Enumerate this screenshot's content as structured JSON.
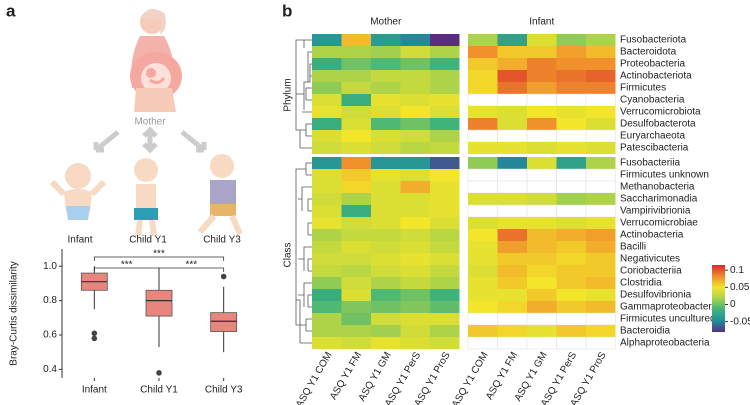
{
  "chart_data": [
    {
      "type": "boxplot",
      "panel_label": "a",
      "illustration_labels": [
        "Mother",
        "Infant",
        "Child Y1",
        "Child Y3"
      ],
      "ylabel": "Bray-Curtis dissimilarity",
      "categories": [
        "Infant",
        "Child Y1",
        "Child Y3"
      ],
      "boxes": [
        {
          "whisker_low": 0.75,
          "q1": 0.86,
          "median": 0.91,
          "q3": 0.96,
          "whisker_high": 1.0,
          "outliers": [
            0.61,
            0.58
          ]
        },
        {
          "whisker_low": 0.53,
          "q1": 0.71,
          "median": 0.8,
          "q3": 0.86,
          "whisker_high": 0.97,
          "outliers": [
            0.38
          ]
        },
        {
          "whisker_low": 0.5,
          "q1": 0.62,
          "median": 0.68,
          "q3": 0.73,
          "whisker_high": 0.88,
          "outliers": [
            0.94
          ]
        }
      ],
      "color": "#e8857c",
      "annotations": [
        "***",
        "***",
        "***"
      ],
      "ylim": [
        0.35,
        1.1
      ],
      "yticks": [
        {
          "value": 0.4,
          "label": "0.4"
        },
        {
          "value": 0.6,
          "label": "0.6"
        },
        {
          "value": 0.8,
          "label": "0.8"
        },
        {
          "value": 1.0,
          "label": "1.0"
        }
      ]
    },
    {
      "type": "heatmap",
      "panel_label": "b",
      "columns": [
        "ASQ Y1 COM",
        "ASQ Y1 FM",
        "ASQ Y1 GM",
        "ASQ Y1 PerS",
        "ASQ Y1 ProS"
      ],
      "row_groups": [
        {
          "name": "Phylum",
          "rows": [
            "Fusobacteriota",
            "Bacteroidota",
            "Proteobacteria",
            "Actinobacteriota",
            "Firmicutes",
            "Cyanobacteria",
            "Verrucomicrobiota",
            "Desulfobacterota",
            "Euryarchaeota",
            "Patescibacteria"
          ]
        },
        {
          "name": "Class",
          "rows": [
            "Fusobacteriia",
            "Firmicutes unknown",
            "Methanobacteria",
            "Saccharimonadia",
            "Vampirivibrionia",
            "Verrucomicrobiae",
            "Actinobacteria",
            "Bacilli",
            "Negativicutes",
            "Coriobacteriia",
            "Clostridia",
            "Desulfovibrionia",
            "Gammaproteobacteria",
            "Firmicutes uncultured",
            "Bacteroidia",
            "Alphaproteobacteria"
          ]
        }
      ],
      "panels": [
        {
          "title": "Mother",
          "values": [
            [
              [
                -0.04,
                0.065,
                -0.035,
                -0.05,
                -0.08
              ],
              [
                0.02,
                0.02,
                0.015,
                0.035,
                0.02
              ],
              [
                -0.02,
                0,
                -0.01,
                0,
                -0.015
              ],
              [
                0.02,
                0.02,
                0.03,
                0.03,
                0.02
              ],
              [
                0.01,
                0.03,
                0.02,
                0.03,
                0.02
              ],
              [
                0.04,
                -0.02,
                0.045,
                0.04,
                0.045
              ],
              [
                0.045,
                0.035,
                0.04,
                0.05,
                0.04
              ],
              [
                -0.02,
                0.04,
                -0.01,
                0,
                -0.015
              ],
              [
                0.04,
                0.05,
                0.04,
                0.035,
                0.02
              ],
              [
                0.035,
                0.04,
                0.035,
                0.025,
                0.03
              ]
            ],
            [
              [
                -0.04,
                0.08,
                -0.04,
                -0.04,
                -0.065
              ],
              [
                0.04,
                0.06,
                0.045,
                0.04,
                0.05
              ],
              [
                0.04,
                0.055,
                0.04,
                0.07,
                0.045
              ],
              [
                0.035,
                0.02,
                0.04,
                0.04,
                0.045
              ],
              [
                0.04,
                -0.02,
                0.04,
                0.04,
                0.045
              ],
              [
                0.045,
                0.035,
                0.04,
                0.05,
                0.04
              ],
              [
                0.02,
                0.03,
                0.03,
                0.035,
                0.025
              ],
              [
                0.03,
                0.04,
                0.035,
                0.04,
                0.03
              ],
              [
                0.035,
                0.035,
                0.04,
                0.045,
                0.04
              ],
              [
                0.03,
                0.025,
                0.035,
                0.04,
                0.03
              ],
              [
                0.01,
                0.035,
                0.02,
                0.03,
                0.02
              ],
              [
                -0.02,
                0.04,
                -0.01,
                0,
                -0.015
              ],
              [
                -0.01,
                0.005,
                0,
                0.005,
                -0.005
              ],
              [
                0.02,
                0,
                0.035,
                0.04,
                0.04
              ],
              [
                0.02,
                0.02,
                0.015,
                0.035,
                0.02
              ],
              [
                0.04,
                0.035,
                0.045,
                0.04,
                0.035
              ]
            ]
          ]
        },
        {
          "title": "Infant",
          "values": [
            [
              [
                0.02,
                -0.03,
                0.04,
                0.01,
                0.02
              ],
              [
                0.08,
                0.06,
                0.06,
                0.075,
                0.065
              ],
              [
                0.06,
                0.07,
                0.085,
                0.08,
                0.08
              ],
              [
                0.055,
                0.1,
                0.085,
                0.09,
                0.095
              ],
              [
                0.055,
                0.09,
                0.075,
                0.085,
                0.085
              ],
              [
                null,
                null,
                null,
                null,
                null
              ],
              [
                0.045,
                0.04,
                0.05,
                0.045,
                0.05
              ],
              [
                0.085,
                0.04,
                0.08,
                0.05,
                0.04
              ],
              [
                null,
                null,
                null,
                null,
                null
              ],
              [
                0.045,
                0.045,
                0.04,
                0.045,
                0.04
              ]
            ],
            [
              [
                0.01,
                -0.05,
                0.04,
                -0.03,
                0.02
              ],
              [
                null,
                null,
                null,
                null,
                null
              ],
              [
                null,
                null,
                null,
                null,
                null
              ],
              [
                0.04,
                0.04,
                0.035,
                0.015,
                0.02
              ],
              [
                null,
                null,
                null,
                null,
                null
              ],
              [
                0.04,
                0.045,
                0.045,
                0.04,
                0.045
              ],
              [
                0.05,
                0.09,
                0.065,
                0.07,
                0.075
              ],
              [
                0.045,
                0.075,
                0.065,
                0.06,
                0.07
              ],
              [
                0.045,
                0.06,
                0.06,
                0.055,
                0.06
              ],
              [
                0.04,
                0.065,
                0.055,
                0.06,
                0.06
              ],
              [
                0.045,
                0.06,
                0.05,
                0.06,
                0.065
              ],
              [
                0.045,
                0.045,
                0.06,
                0.05,
                0.045
              ],
              [
                0.05,
                0.055,
                0.07,
                0.06,
                0.065
              ],
              [
                null,
                null,
                null,
                null,
                null
              ],
              [
                0.06,
                0.055,
                0.045,
                0.06,
                0.055
              ],
              [
                null,
                null,
                null,
                null,
                null
              ]
            ]
          ]
        }
      ],
      "clim": [
        -0.08,
        0.115
      ],
      "cticks": [
        0.1,
        0.05,
        0,
        -0.05
      ],
      "colors": [
        "#5a2d82",
        "#1f8f9c",
        "#3fb37a",
        "#a8d24a",
        "#f2e52a",
        "#f08a2c",
        "#d7262b"
      ],
      "null_color": "#ffffff"
    }
  ]
}
